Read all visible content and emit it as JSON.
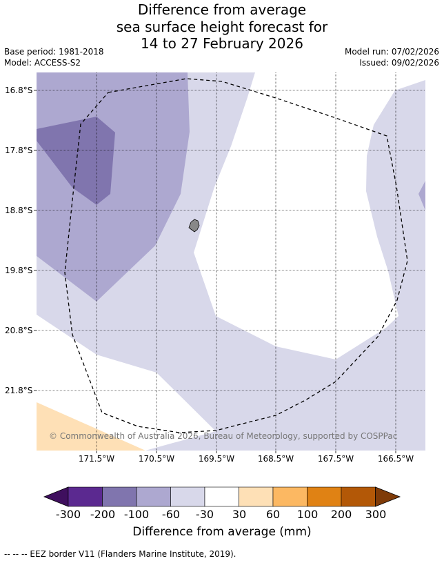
{
  "title": {
    "line1": "Difference from average",
    "line2": "sea surface height forecast for",
    "line3": "14 to 27 February 2026"
  },
  "meta": {
    "base_period": "Base period: 1981-2018",
    "model": "Model: ACCESS-S2",
    "model_run": "Model run: 07/02/2026",
    "issued": "Issued: 09/02/2026"
  },
  "map": {
    "latitude_labels": [
      "16.8°S",
      "17.8°S",
      "18.8°S",
      "19.8°S",
      "20.8°S",
      "21.8°S"
    ],
    "longitude_labels": [
      "171.5°W",
      "170.5°W",
      "169.5°W",
      "168.5°W",
      "167.5°W",
      "166.5°W"
    ],
    "colors": {
      "band_neg100_neg60": "#ada8d0",
      "band_neg200_neg100": "#8075ae",
      "band_neg60_neg30": "#d8d8ea",
      "band_neg30_30": "#ffffff",
      "band_30_60": "#fee0b6",
      "land": "#888888",
      "grid": "#000000",
      "eez_border": "#000000"
    },
    "copyright": "© Commonwealth of Australia 2026, Bureau of Meteorology, supported by COSPPac"
  },
  "colorbar": {
    "tick_labels": [
      "-300",
      "-200",
      "-100",
      "-60",
      "-30",
      "30",
      "60",
      "100",
      "200",
      "300"
    ],
    "colors": [
      "#3f0f5e",
      "#5b2990",
      "#8075ae",
      "#ada8d0",
      "#d8d8ea",
      "#ffffff",
      "#fee0b6",
      "#fcb862",
      "#e08214",
      "#b35807",
      "#7f3b08"
    ],
    "label": "Difference from average (mm)"
  },
  "legend": {
    "eez_note": "--  --  -- EEZ border V11 (Flanders Marine Institute, 2019)."
  }
}
